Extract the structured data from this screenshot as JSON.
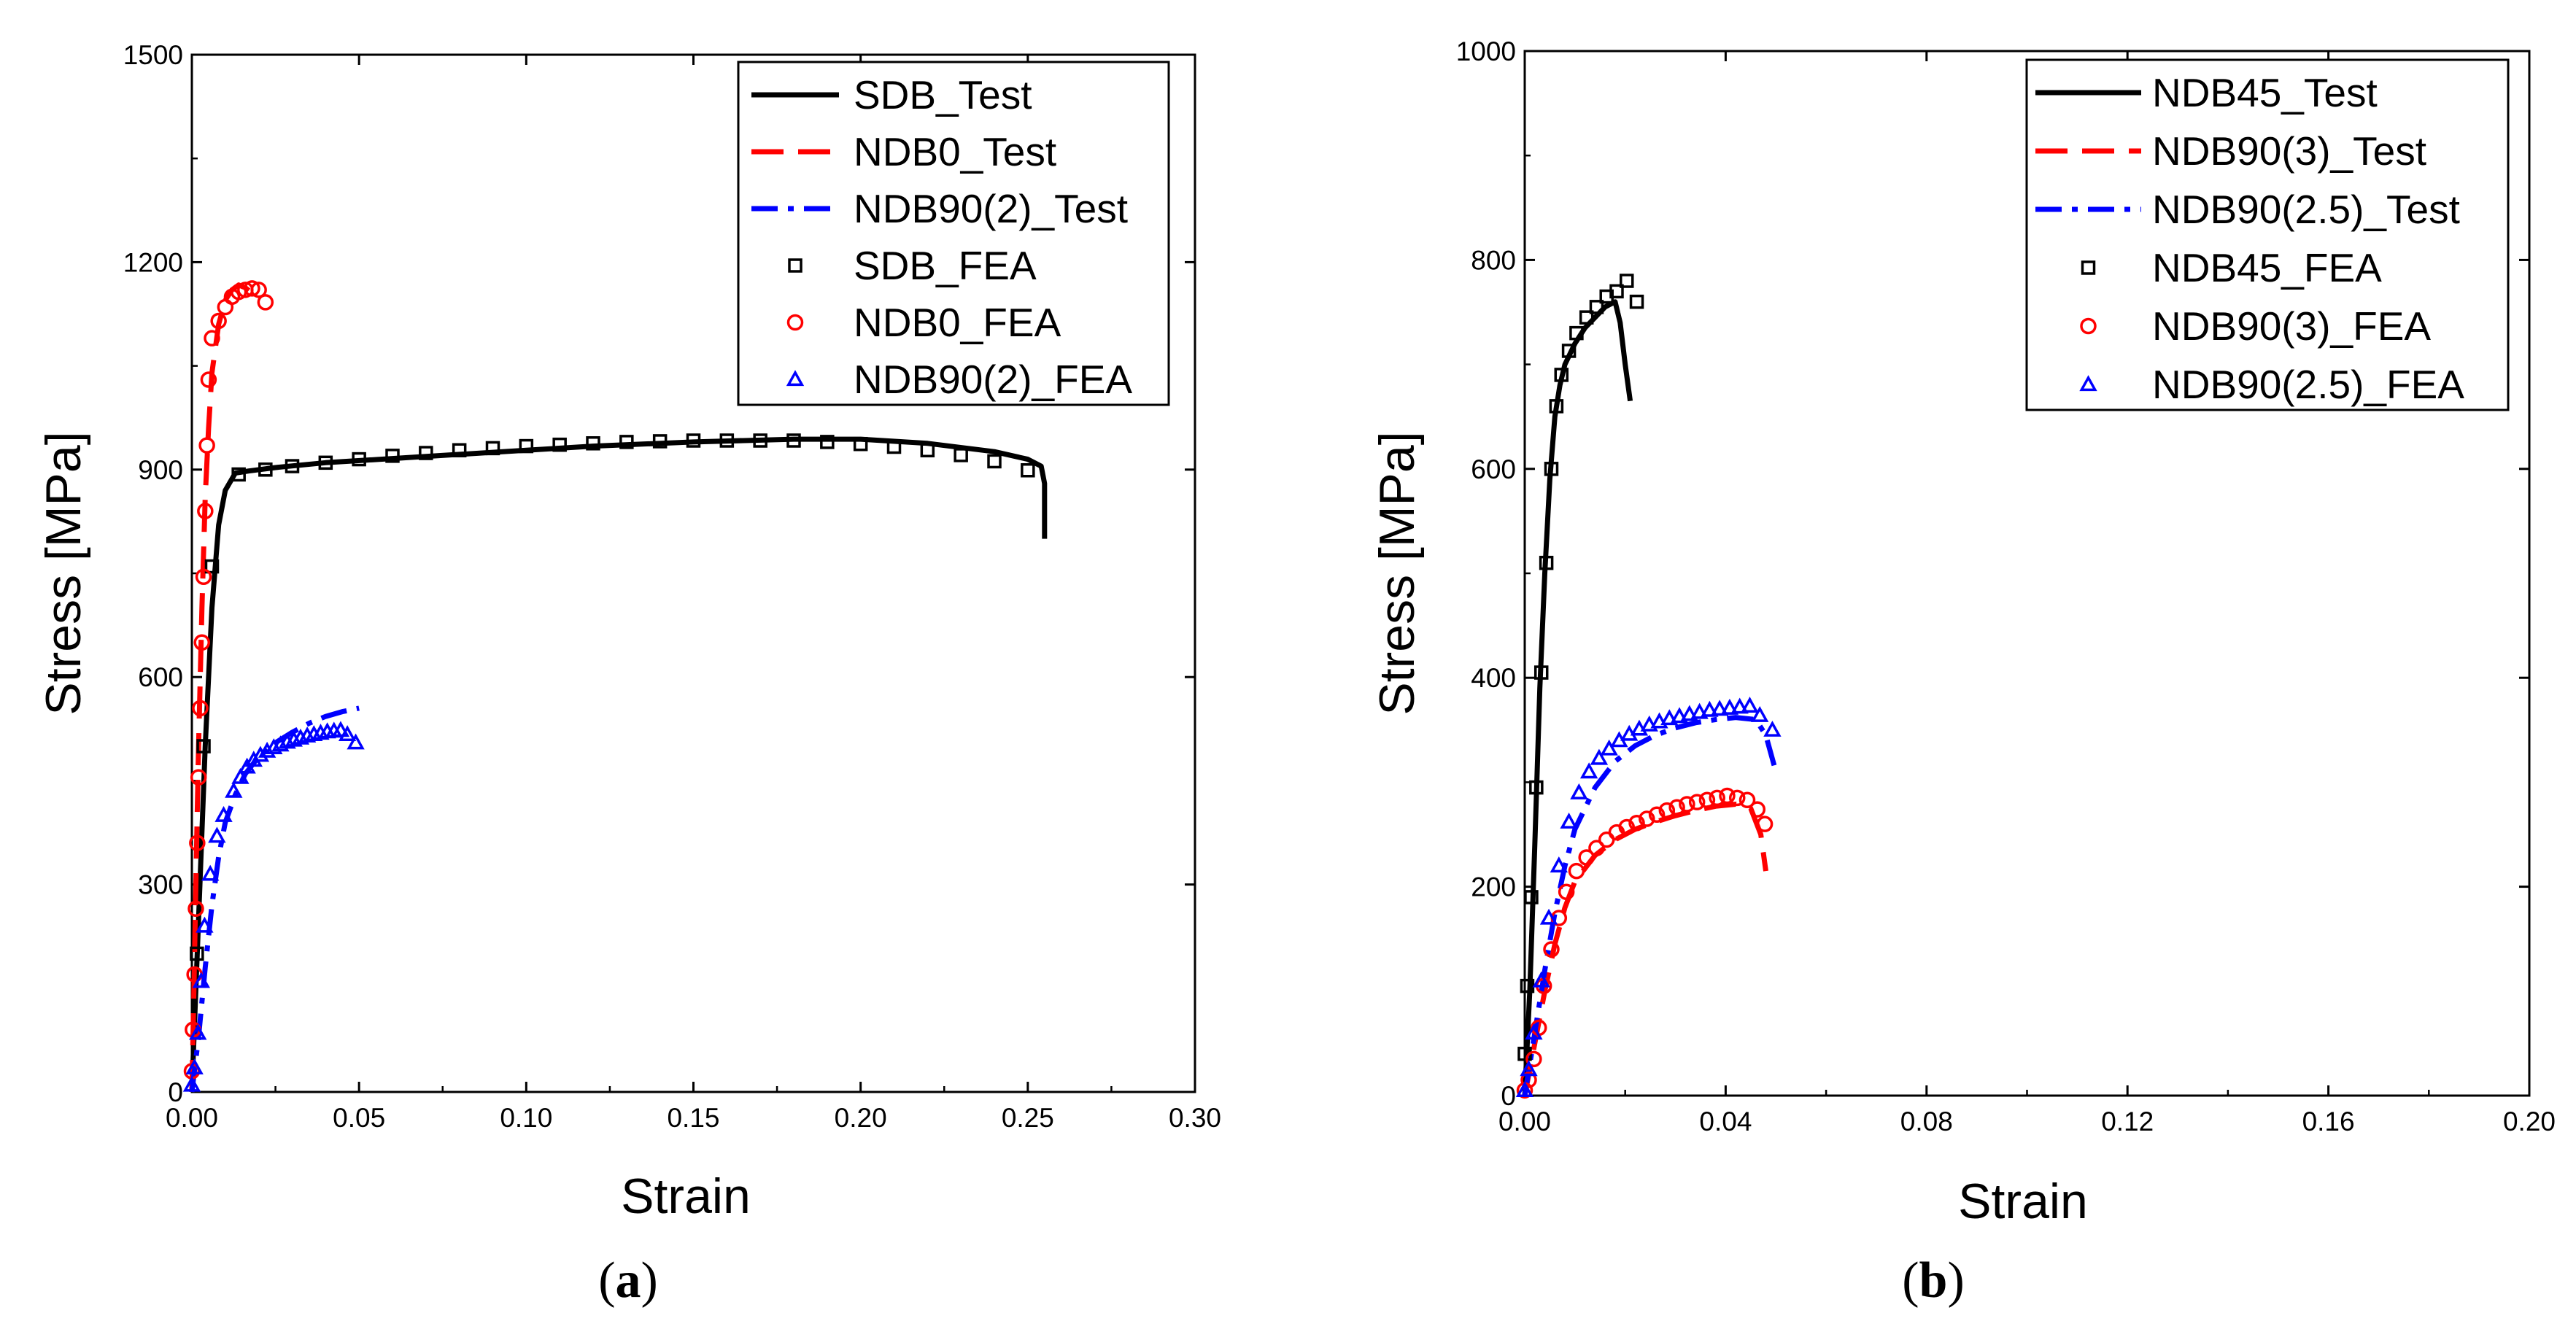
{
  "chart_data": [
    {
      "type": "line",
      "panel_label": "a",
      "xlabel": "Strain",
      "ylabel": "Stress [MPa]",
      "xlim": [
        0,
        0.3
      ],
      "ylim": [
        0,
        1500
      ],
      "xticks": [
        "0.00",
        "0.05",
        "0.10",
        "0.15",
        "0.20",
        "0.25",
        "0.30"
      ],
      "yticks": [
        "0",
        "300",
        "600",
        "900",
        "1200",
        "1500"
      ],
      "legend_position": "top-right",
      "series": [
        {
          "name": "SDB_Test",
          "kind": "line",
          "color": "#000000",
          "dash": "solid",
          "x": [
            0,
            0.002,
            0.004,
            0.006,
            0.008,
            0.01,
            0.013,
            0.017,
            0.025,
            0.04,
            0.06,
            0.08,
            0.1,
            0.12,
            0.15,
            0.18,
            0.2,
            0.22,
            0.24,
            0.25,
            0.254,
            0.255,
            0.255
          ],
          "y": [
            0,
            250,
            500,
            700,
            820,
            870,
            895,
            898,
            903,
            910,
            916,
            922,
            928,
            934,
            940,
            944,
            944,
            938,
            926,
            915,
            905,
            880,
            800
          ]
        },
        {
          "name": "NDB0_Test",
          "kind": "line",
          "color": "#ff0000",
          "dash": "dashed",
          "x": [
            0,
            0.0005,
            0.001,
            0.0015,
            0.002,
            0.003,
            0.004,
            0.005,
            0.006,
            0.008,
            0.01,
            0.012,
            0.014,
            0.016,
            0.018,
            0.02
          ],
          "y": [
            0,
            120,
            250,
            380,
            500,
            700,
            860,
            960,
            1040,
            1110,
            1145,
            1160,
            1167,
            1163,
            1155,
            1145
          ]
        },
        {
          "name": "NDB90(2)_Test",
          "kind": "line",
          "color": "#0000ff",
          "dash": "dashdot",
          "x": [
            0,
            0.002,
            0.004,
            0.006,
            0.008,
            0.01,
            0.013,
            0.016,
            0.02,
            0.025,
            0.03,
            0.035,
            0.04,
            0.045,
            0.05
          ],
          "y": [
            0,
            80,
            180,
            270,
            340,
            390,
            430,
            460,
            485,
            505,
            520,
            533,
            543,
            550,
            555
          ]
        },
        {
          "name": "SDB_FEA",
          "kind": "scatter",
          "marker": "square",
          "color": "#000000",
          "x": [
            0.0015,
            0.0035,
            0.006,
            0.014,
            0.022,
            0.03,
            0.04,
            0.05,
            0.06,
            0.07,
            0.08,
            0.09,
            0.1,
            0.11,
            0.12,
            0.13,
            0.14,
            0.15,
            0.16,
            0.17,
            0.18,
            0.19,
            0.2,
            0.21,
            0.22,
            0.23,
            0.24,
            0.25
          ],
          "y": [
            200,
            500,
            760,
            893,
            900,
            905,
            910,
            915,
            920,
            924,
            928,
            931,
            934,
            936,
            938,
            940,
            941,
            942,
            942,
            942,
            942,
            940,
            937,
            933,
            928,
            921,
            912,
            899
          ]
        },
        {
          "name": "NDB0_FEA",
          "kind": "scatter",
          "marker": "circle",
          "color": "#ff0000",
          "x": [
            0.0,
            0.0003,
            0.0008,
            0.0012,
            0.0016,
            0.002,
            0.0025,
            0.003,
            0.0035,
            0.004,
            0.0045,
            0.005,
            0.006,
            0.008,
            0.01,
            0.012,
            0.014,
            0.016,
            0.018,
            0.02,
            0.022
          ],
          "y": [
            30,
            90,
            170,
            265,
            360,
            455,
            555,
            650,
            745,
            840,
            935,
            1030,
            1090,
            1115,
            1135,
            1150,
            1157,
            1160,
            1162,
            1160,
            1142
          ]
        },
        {
          "name": "NDB90(2)_FEA",
          "kind": "scatter",
          "marker": "triangle",
          "color": "#0000ff",
          "x": [
            0.0,
            0.0008,
            0.0018,
            0.0028,
            0.0038,
            0.0055,
            0.0075,
            0.0095,
            0.0125,
            0.0145,
            0.0165,
            0.0185,
            0.0205,
            0.0225,
            0.0245,
            0.0265,
            0.0285,
            0.0305,
            0.0325,
            0.0345,
            0.0365,
            0.0385,
            0.0405,
            0.0425,
            0.0445,
            0.0465,
            0.049
          ],
          "y": [
            10,
            35,
            85,
            160,
            240,
            315,
            370,
            400,
            435,
            455,
            470,
            480,
            487,
            493,
            498,
            502,
            506,
            509,
            512,
            515,
            517,
            519,
            521,
            522,
            523,
            517,
            505
          ]
        }
      ]
    },
    {
      "type": "line",
      "panel_label": "b",
      "xlabel": "Strain",
      "ylabel": "Stress [MPa]",
      "xlim": [
        0,
        0.2
      ],
      "ylim": [
        0,
        1000
      ],
      "xticks": [
        "0.00",
        "0.04",
        "0.08",
        "0.12",
        "0.16",
        "0.20"
      ],
      "yticks": [
        "0",
        "200",
        "400",
        "600",
        "800",
        "1000"
      ],
      "legend_position": "top-right",
      "series": [
        {
          "name": "NDB45_Test",
          "kind": "line",
          "color": "#000000",
          "dash": "solid",
          "x": [
            0,
            0.001,
            0.002,
            0.003,
            0.004,
            0.005,
            0.006,
            0.007,
            0.008,
            0.01,
            0.012,
            0.014,
            0.016,
            0.018,
            0.019,
            0.02,
            0.021
          ],
          "y": [
            0,
            100,
            240,
            390,
            500,
            590,
            650,
            680,
            700,
            720,
            735,
            745,
            755,
            760,
            740,
            700,
            665
          ]
        },
        {
          "name": "NDB90(3)_Test",
          "kind": "line",
          "color": "#ff0000",
          "dash": "dashed",
          "x": [
            0,
            0.002,
            0.004,
            0.006,
            0.008,
            0.01,
            0.014,
            0.018,
            0.022,
            0.026,
            0.03,
            0.034,
            0.038,
            0.042,
            0.045,
            0.047,
            0.048
          ],
          "y": [
            0,
            50,
            100,
            145,
            180,
            205,
            230,
            245,
            255,
            262,
            268,
            273,
            277,
            279,
            275,
            250,
            215
          ]
        },
        {
          "name": "NDB90(2.5)_Test",
          "kind": "line",
          "color": "#0000ff",
          "dash": "dashdot",
          "x": [
            0,
            0.002,
            0.004,
            0.006,
            0.008,
            0.01,
            0.014,
            0.018,
            0.022,
            0.026,
            0.03,
            0.034,
            0.038,
            0.042,
            0.046,
            0.048,
            0.05
          ],
          "y": [
            0,
            60,
            120,
            175,
            220,
            255,
            295,
            320,
            335,
            345,
            352,
            357,
            360,
            362,
            360,
            345,
            310
          ]
        },
        {
          "name": "NDB45_FEA",
          "kind": "scatter",
          "marker": "square",
          "color": "#000000",
          "x": [
            0.0,
            0.0005,
            0.0013,
            0.0023,
            0.0033,
            0.0043,
            0.0053,
            0.0063,
            0.0073,
            0.0088,
            0.0103,
            0.0123,
            0.0143,
            0.0163,
            0.0183,
            0.0203,
            0.0223
          ],
          "y": [
            40,
            105,
            190,
            295,
            405,
            510,
            600,
            660,
            690,
            713,
            730,
            745,
            755,
            765,
            770,
            780,
            760
          ]
        },
        {
          "name": "NDB90(3)_FEA",
          "kind": "scatter",
          "marker": "circle",
          "color": "#ff0000",
          "x": [
            0.0,
            0.0008,
            0.0018,
            0.0028,
            0.0038,
            0.0053,
            0.0068,
            0.0083,
            0.0103,
            0.0123,
            0.0143,
            0.0163,
            0.0183,
            0.0203,
            0.0223,
            0.0243,
            0.0263,
            0.0283,
            0.0303,
            0.0323,
            0.0343,
            0.0363,
            0.0383,
            0.0403,
            0.0423,
            0.0443,
            0.0463,
            0.0478
          ],
          "y": [
            5,
            15,
            35,
            65,
            105,
            140,
            170,
            195,
            215,
            228,
            237,
            245,
            252,
            257,
            261,
            265,
            269,
            273,
            276,
            279,
            281,
            283,
            285,
            287,
            285,
            283,
            274,
            260
          ]
        },
        {
          "name": "NDB90(2.5)_FEA",
          "kind": "scatter",
          "marker": "triangle",
          "color": "#0000ff",
          "x": [
            0.0,
            0.0008,
            0.0018,
            0.0033,
            0.0048,
            0.0068,
            0.0088,
            0.0108,
            0.0128,
            0.0148,
            0.0168,
            0.0188,
            0.0208,
            0.0228,
            0.0248,
            0.0268,
            0.0288,
            0.0308,
            0.0328,
            0.0348,
            0.0368,
            0.0388,
            0.0408,
            0.0428,
            0.0448,
            0.0468,
            0.0493
          ],
          "y": [
            5,
            25,
            60,
            110,
            170,
            220,
            262,
            290,
            310,
            323,
            332,
            340,
            346,
            351,
            355,
            358,
            361,
            363,
            365,
            367,
            369,
            370,
            371,
            372,
            373,
            364,
            350
          ]
        }
      ]
    }
  ]
}
